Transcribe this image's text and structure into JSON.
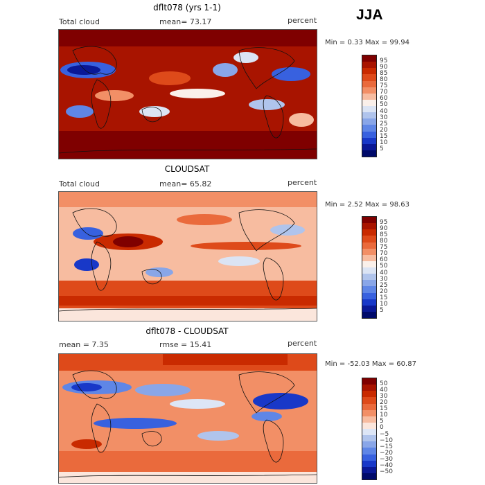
{
  "season": "JJA",
  "panels": [
    {
      "title": "dflt078 (yrs 1-1)",
      "left_label": "Total cloud",
      "mean_label": "mean=  73.17",
      "units": "percent",
      "minmax": "Min =   0.33 Max =  99.94",
      "levels": [
        "95",
        "90",
        "85",
        "80",
        "75",
        "70",
        "60",
        "50",
        "40",
        "30",
        "25",
        "20",
        "15",
        "10",
        "5"
      ],
      "colors": [
        "#7f0000",
        "#a81400",
        "#c92a00",
        "#de4a1a",
        "#ea6a3c",
        "#f28f66",
        "#f7bca0",
        "#faf0ea",
        "#dbe4f4",
        "#b0c4ec",
        "#89a6e8",
        "#5f86e6",
        "#3861df",
        "#1838c8",
        "#0a1896",
        "#000a6a"
      ]
    },
    {
      "title": "CLOUDSAT",
      "left_label": "Total cloud",
      "mean_label": "mean=  65.82",
      "units": "percent",
      "minmax": "Min =   2.52 Max =  98.63",
      "levels": [
        "95",
        "90",
        "85",
        "80",
        "75",
        "70",
        "60",
        "50",
        "40",
        "30",
        "25",
        "20",
        "15",
        "10",
        "5"
      ],
      "colors": [
        "#7f0000",
        "#a81400",
        "#c92a00",
        "#de4a1a",
        "#ea6a3c",
        "#f28f66",
        "#f7bca0",
        "#faf0ea",
        "#dbe4f4",
        "#b0c4ec",
        "#89a6e8",
        "#5f86e6",
        "#3861df",
        "#1838c8",
        "#0a1896",
        "#000a6a"
      ]
    },
    {
      "title": "dflt078 - CLOUDSAT",
      "left_label": "mean =   7.35",
      "mean_label": "rmse =  15.41",
      "units": "percent",
      "minmax": "Min = -52.03 Max =  60.87",
      "levels": [
        "50",
        "40",
        "30",
        "20",
        "15",
        "10",
        "5",
        "0",
        "−5",
        "−10",
        "−15",
        "−20",
        "−30",
        "−40",
        "−50"
      ],
      "colors": [
        "#7f0000",
        "#a81400",
        "#c92a00",
        "#de4a1a",
        "#ea6a3c",
        "#f28f66",
        "#f7bca0",
        "#fbe6dc",
        "#dde6f6",
        "#b0c4ec",
        "#89a6e8",
        "#5f86e6",
        "#3861df",
        "#1838c8",
        "#0a1896",
        "#000a6a"
      ]
    }
  ]
}
